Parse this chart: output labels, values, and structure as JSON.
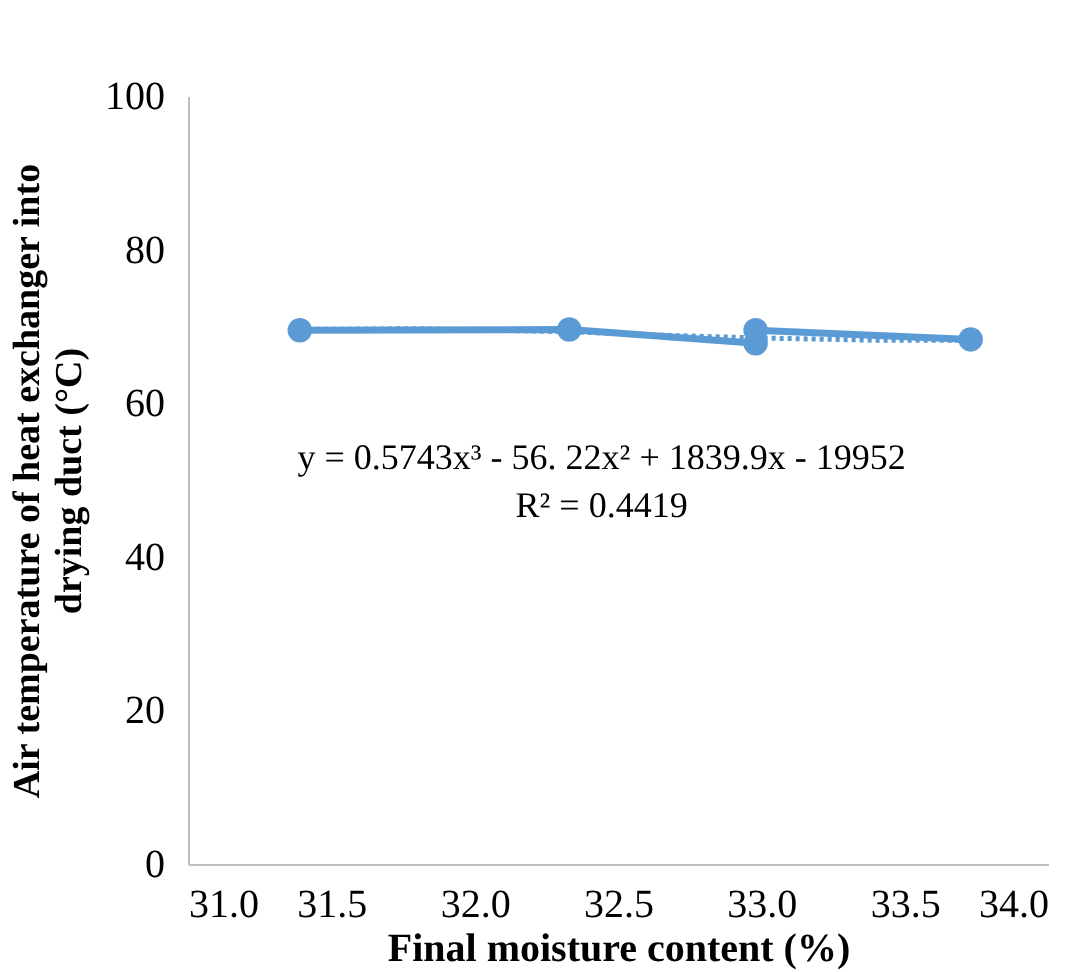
{
  "chart_data": {
    "type": "line",
    "xlabel": "Final moisture content (%)",
    "ylabel": "Air temperature of heat exchanger into drying duct (°C)",
    "series": [
      {
        "color": "#5b9bd5",
        "x": [
          31.39,
          32.33,
          32.98,
          32.98,
          33.73
        ],
        "values": [
          69.5,
          69.6,
          67.8,
          69.5,
          68.3
        ],
        "marker": "circle",
        "line_style": "solid"
      },
      {
        "type": "line",
        "color": "#5b9bd5",
        "x": [
          31.39,
          31.8,
          32.33,
          32.7,
          32.98,
          33.4,
          33.73
        ],
        "values": [
          69.6,
          69.7,
          69.3,
          68.8,
          68.5,
          68.2,
          68.2
        ],
        "marker": "none",
        "line_style": "dotted"
      }
    ],
    "xlim": [
      31.0,
      34.0
    ],
    "xticks": [
      {
        "value": 31.0,
        "label": "31.0"
      },
      {
        "value": 31.5,
        "label": "31.5"
      },
      {
        "value": 32.0,
        "label": "32.0"
      },
      {
        "value": 32.5,
        "label": "32.5"
      },
      {
        "value": 33.0,
        "label": "33.0"
      },
      {
        "value": 33.5,
        "label": "33.5"
      },
      {
        "value": 34.0,
        "label": "34.0"
      }
    ],
    "ylim": [
      0,
      100
    ],
    "yticks": [
      0,
      20,
      40,
      60,
      80,
      100
    ],
    "grid": false,
    "annotations": [
      "y = 0.5743x³ - 56. 22x² + 1839.9x - 19952",
      "R² = 0.4419"
    ]
  }
}
